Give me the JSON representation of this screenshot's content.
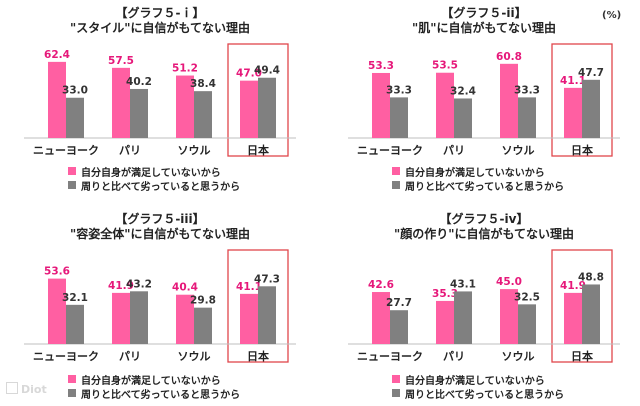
{
  "unit_label": "(%)",
  "watermark": "Diot",
  "colors": {
    "pink": "#ff5fa2",
    "gray": "#808080",
    "value_pink": "#e6187a",
    "highlight_box": "#e0464c"
  },
  "legend": {
    "series1": "自分自身が満足していないから",
    "series2": "周りと比べて劣っていると思うから"
  },
  "chart_data": [
    {
      "type": "bar",
      "title_line1": "【グラフ５-ｉ】",
      "title_line2": "\"スタイル\"に自信がもてない理由",
      "categories": [
        "ニューヨーク",
        "パリ",
        "ソウル",
        "日本"
      ],
      "series": [
        {
          "name": "自分自身が満足していないから",
          "values": [
            62.4,
            57.5,
            51.2,
            47.0
          ],
          "labels": [
            "62.4",
            "57.5",
            "51.2",
            "47.0"
          ]
        },
        {
          "name": "周りと比べて劣っていると思うから",
          "values": [
            33.0,
            40.2,
            38.4,
            49.4
          ],
          "labels": [
            "33.0",
            "40.2",
            "38.4",
            "49.4"
          ]
        }
      ],
      "highlight": "日本"
    },
    {
      "type": "bar",
      "title_line1": "【グラフ５-ii】",
      "title_line2": "\"肌\"に自信がもてない理由",
      "categories": [
        "ニューヨーク",
        "パリ",
        "ソウル",
        "日本"
      ],
      "series": [
        {
          "name": "自分自身が満足していないから",
          "values": [
            53.3,
            53.5,
            60.8,
            41.1
          ],
          "labels": [
            "53.3",
            "53.5",
            "60.8",
            "41.1"
          ]
        },
        {
          "name": "周りと比べて劣っていると思うから",
          "values": [
            33.3,
            32.4,
            33.3,
            47.7
          ],
          "labels": [
            "33.3",
            "32.4",
            "33.3",
            "47.7"
          ]
        }
      ],
      "highlight": "日本"
    },
    {
      "type": "bar",
      "title_line1": "【グラフ５-iii】",
      "title_line2": "\"容姿全体\"に自信がもてない理由",
      "categories": [
        "ニューヨーク",
        "パリ",
        "ソウル",
        "日本"
      ],
      "series": [
        {
          "name": "自分自身が満足していないから",
          "values": [
            53.6,
            41.9,
            40.4,
            41.1
          ],
          "labels": [
            "53.6",
            "41.9",
            "40.4",
            "41.1"
          ]
        },
        {
          "name": "周りと比べて劣っていると思うから",
          "values": [
            32.1,
            43.2,
            29.8,
            47.3
          ],
          "labels": [
            "32.1",
            "43.2",
            "29.8",
            "47.3"
          ]
        }
      ],
      "highlight": "日本"
    },
    {
      "type": "bar",
      "title_line1": "【グラフ５-iv】",
      "title_line2": "\"顔の作り\"に自信がもてない理由",
      "categories": [
        "ニューヨーク",
        "パリ",
        "ソウル",
        "日本"
      ],
      "series": [
        {
          "name": "自分自身が満足していないから",
          "values": [
            42.6,
            35.3,
            45.0,
            41.9
          ],
          "labels": [
            "42.6",
            "35.3",
            "45.0",
            "41.9"
          ]
        },
        {
          "name": "周りと比べて劣っていると思うから",
          "values": [
            27.7,
            43.1,
            32.5,
            48.8
          ],
          "labels": [
            "27.7",
            "43.1",
            "32.5",
            "48.8"
          ]
        }
      ],
      "highlight": "日本"
    }
  ]
}
